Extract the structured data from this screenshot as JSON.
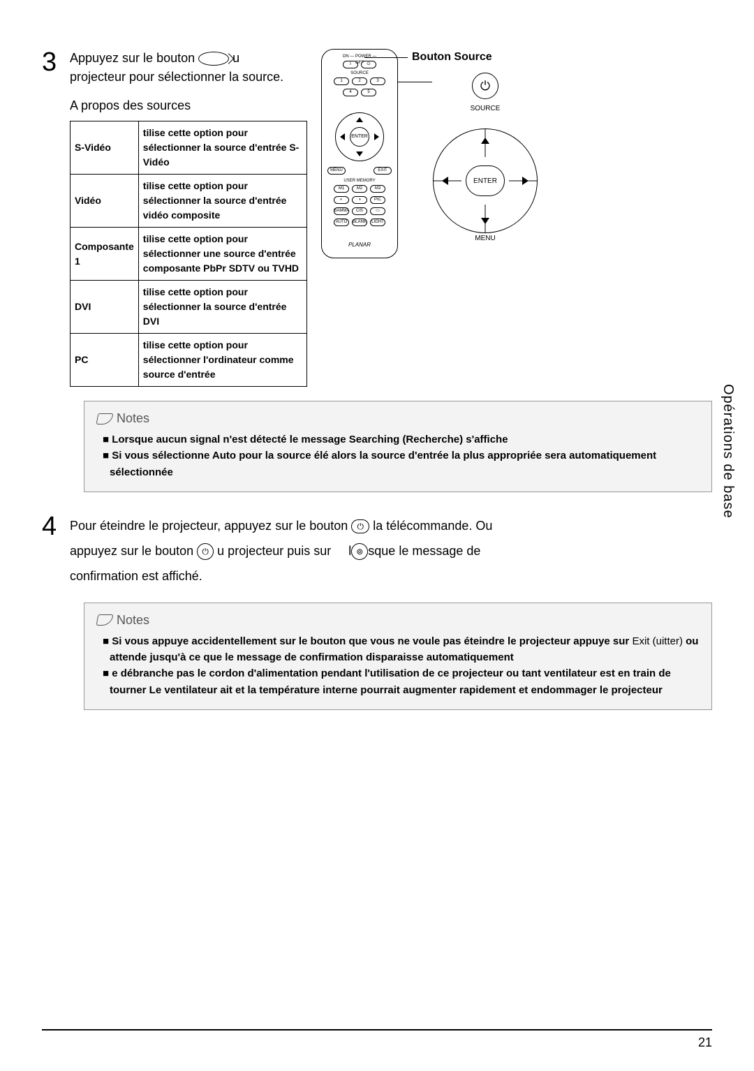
{
  "step3": {
    "num": "3",
    "line1a": "Appuyez sur le bouton",
    "line1b": "u",
    "line2": "projecteur pour sélectionner la source.",
    "line3": "A propos des sources",
    "table": {
      "rows": [
        {
          "name": "S-Vidéo",
          "desc": "tilise cette option pour sélectionner la source d'entrée S-Vidéo"
        },
        {
          "name": "Vidéo",
          "desc": "tilise cette option pour sélectionner la source d'entrée vidéo composite"
        },
        {
          "name": "Composante 1",
          "desc": "tilise cette option pour sélectionner une source d'entrée composante PbPr SDTV ou TVHD"
        },
        {
          "name": "DVI",
          "desc": "tilise cette option pour sélectionner la source d'entrée DVI"
        },
        {
          "name": "PC",
          "desc": "tilise cette option pour sélectionner l'ordinateur comme source d'entrée"
        }
      ]
    },
    "source_btn_label": "Bouton Source",
    "remote": {
      "power_row": "ON — POWER — OFF",
      "source_row": "SOURCE",
      "menu": "MENU",
      "exit": "EXIT",
      "enter": "ENTER",
      "user_mem": "USER MEMORY",
      "m1": "M1",
      "m2": "M2",
      "m3": "M3",
      "auto": "AUTO",
      "blank": "BLANK",
      "light": "LIGHT",
      "gamma": "GAMMA",
      "cis": "CIS",
      "pic": "PIC",
      "logo": "PLANAR"
    },
    "panel": {
      "source": "SOURCE",
      "enter": "ENTER",
      "menu": "MENU",
      "power_glyph": "⏻"
    }
  },
  "notes1": {
    "heading": "Notes",
    "items": [
      "Lorsque aucun signal n'est détecté le message  Searching  (Recherche) s'affiche",
      "Si vous sélectionne  Auto  pour la source élé alors la source d'entrée la plus appropriée sera automatiquement sélectionnée"
    ]
  },
  "step4": {
    "num": "4",
    "l1a": "Pour éteindre le projecteur, appuyez sur le bouton",
    "l1b": "la télécommande. Ou",
    "l2a": "appuyez sur le bouton",
    "l2b": "u projecteur puis sur",
    "l2c": "l",
    "l2d": "sque le message de",
    "l3": "confirmation est affiché.",
    "power_glyph": "⏻",
    "ok_glyph": "⊚"
  },
  "notes2": {
    "heading": "Notes",
    "items": [
      {
        "pre": "Si vous appuye accidentellement sur le bouton  que vous ne voule pas éteindre le projecteur appuye sur",
        "mid": "Exit (uitter)",
        "post": "ou attende jusqu'à ce que le message de confirmation disparaisse automatiquement"
      },
      {
        "text": "e débranche pas le cordon d'alimentation pendant l'utilisation de ce projecteur ou tant ventilateur est en train de tourner  Le ventilateur ait et la température interne pourrait augmenter rapidement et endommager le projecteur"
      }
    ]
  },
  "side_label": "Opérations de base",
  "page_number": "21"
}
